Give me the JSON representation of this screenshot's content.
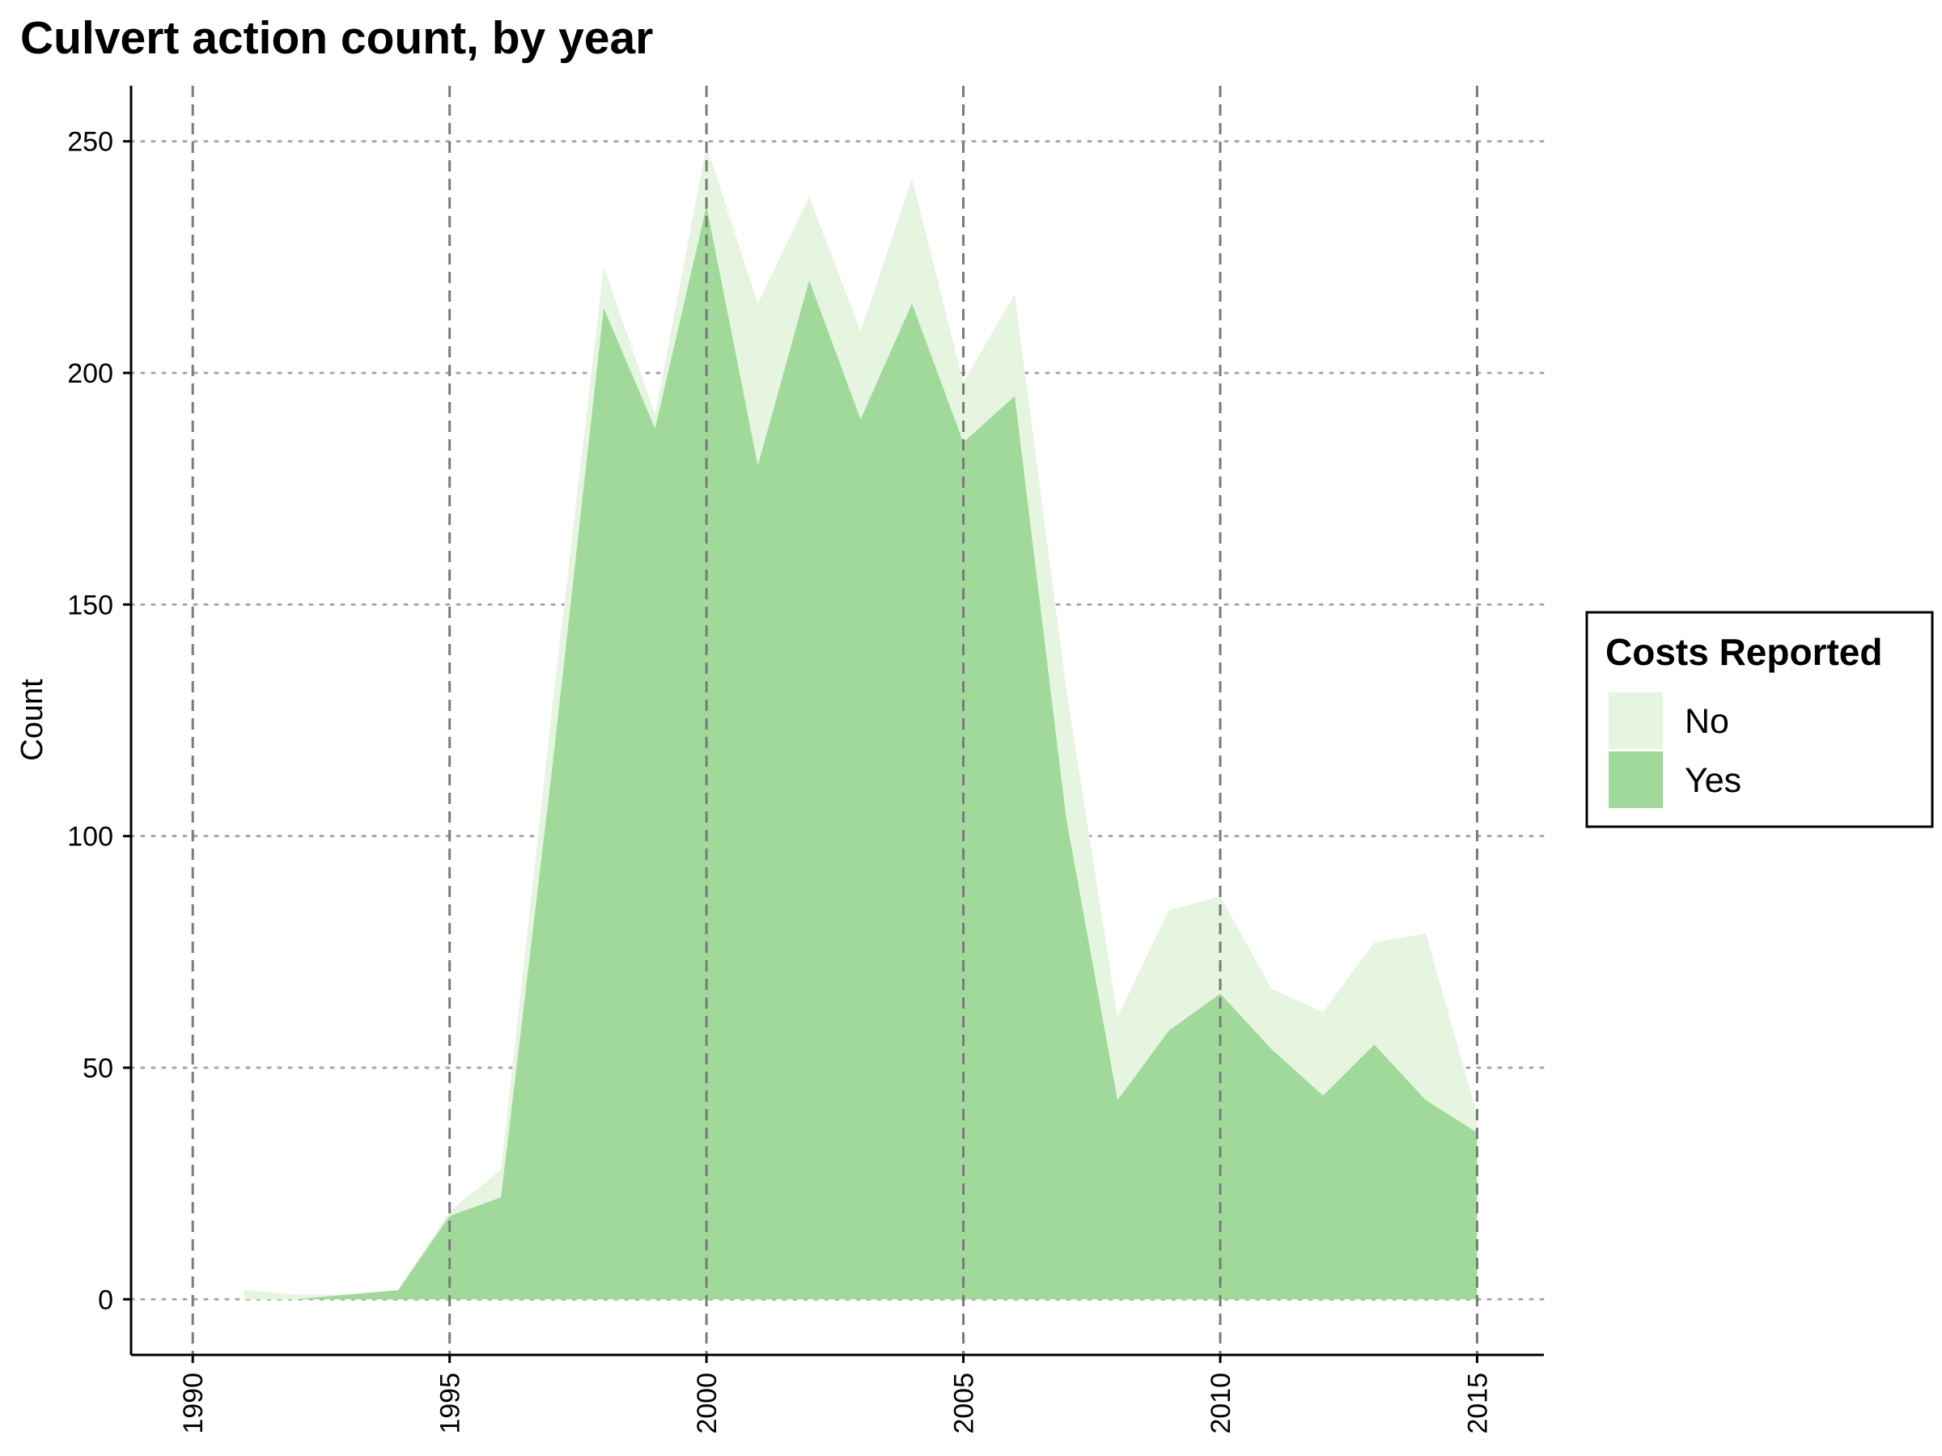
{
  "chart_data": {
    "type": "area",
    "stacked": true,
    "title": "Culvert action count, by year",
    "xlabel": "",
    "ylabel": "Count",
    "xlim": [
      1988.8,
      2016.3
    ],
    "ylim": [
      -12,
      262
    ],
    "x_ticks": [
      1990,
      1995,
      2000,
      2005,
      2010,
      2015
    ],
    "x_tick_labels": [
      "1990",
      "1995",
      "2000",
      "2005",
      "2010",
      "2015"
    ],
    "y_ticks": [
      0,
      50,
      100,
      150,
      200,
      250
    ],
    "y_tick_labels": [
      "0",
      "50",
      "100",
      "150",
      "200",
      "250"
    ],
    "grid": {
      "x_major": "dashed",
      "y_major": "dotted"
    },
    "x": [
      1991,
      1992,
      1993,
      1994,
      1995,
      1996,
      1997,
      1998,
      1999,
      2000,
      2001,
      2002,
      2003,
      2004,
      2005,
      2006,
      2007,
      2008,
      2009,
      2010,
      2011,
      2012,
      2013,
      2014,
      2015
    ],
    "series": [
      {
        "name": "No",
        "color": "#e5f5e0",
        "values": [
          2,
          1,
          0,
          0,
          1,
          6,
          13,
          9,
          3,
          13,
          35,
          18,
          19,
          27,
          13,
          22,
          28,
          18,
          26,
          21,
          13,
          18,
          22,
          36,
          4
        ]
      },
      {
        "name": "Yes",
        "color": "#a1d99b",
        "values": [
          0,
          0,
          1,
          2,
          18,
          22,
          115,
          214,
          188,
          236,
          180,
          220,
          190,
          215,
          185,
          195,
          104,
          43,
          58,
          66,
          54,
          44,
          55,
          43,
          36
        ]
      }
    ],
    "legend": {
      "title": "Costs Reported",
      "placement": "right",
      "entries": [
        {
          "label": "No",
          "color": "#e5f5e0"
        },
        {
          "label": "Yes",
          "color": "#a1d99b"
        }
      ]
    }
  }
}
